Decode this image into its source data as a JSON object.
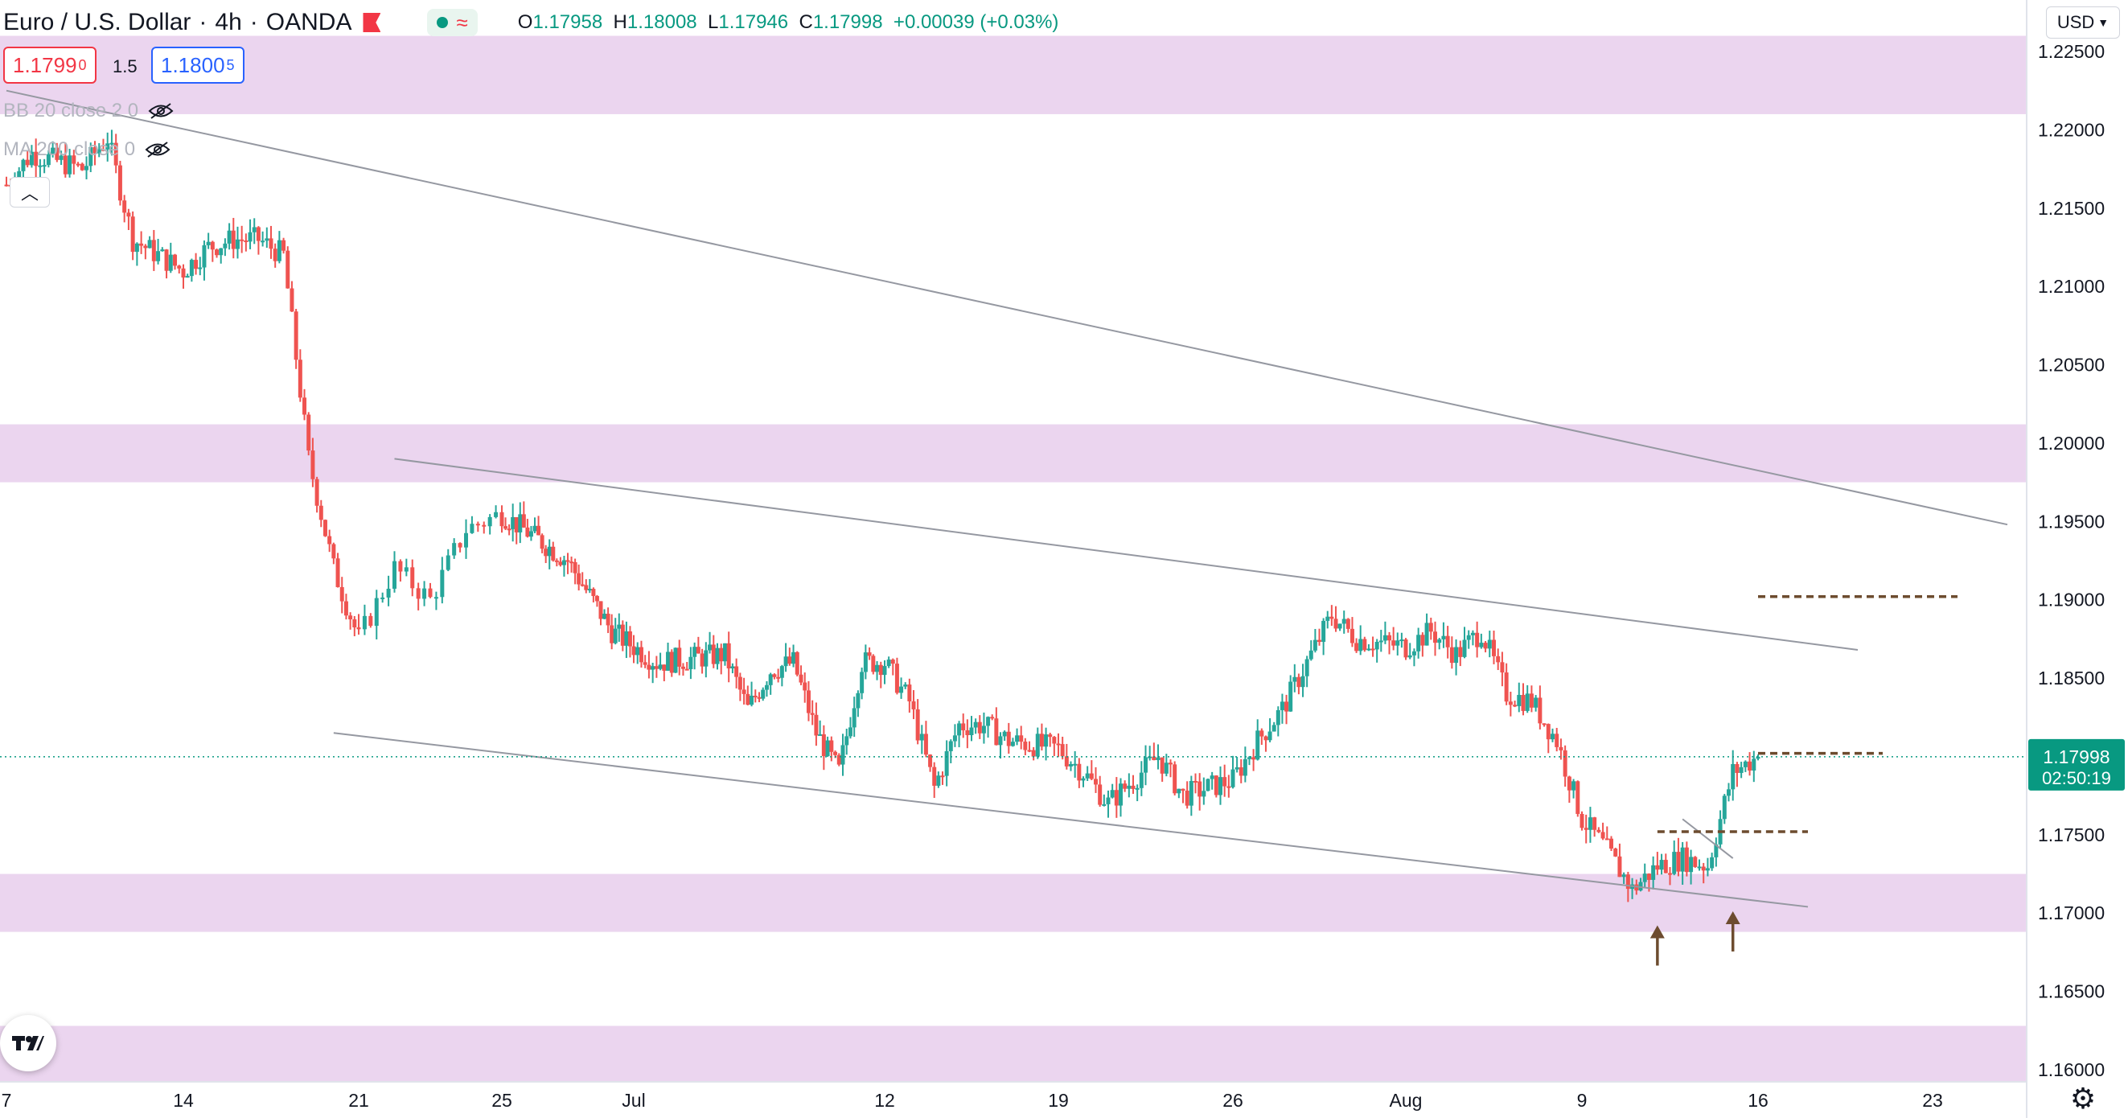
{
  "header": {
    "symbol": "Euro / U.S. Dollar",
    "interval": "4h",
    "source": "OANDA",
    "status_icon": "market-open-dot",
    "approx_symbol": "≈",
    "ohlc": {
      "o_label": "O",
      "o": "1.17958",
      "h_label": "H",
      "h": "1.18008",
      "l_label": "L",
      "l": "1.17946",
      "c_label": "C",
      "c": "1.17998",
      "change": "+0.00039 (+0.03%)"
    }
  },
  "trade": {
    "bid_main": "1.1799",
    "bid_pip": "0",
    "spread": "1.5",
    "ask_main": "1.1800",
    "ask_pip": "5"
  },
  "indicators": [
    "BB 20 close 2 0",
    "MA 200 close 0"
  ],
  "currency_label": "USD",
  "price_label": {
    "price": "1.17998",
    "countdown": "02:50:19"
  },
  "colors": {
    "up": "#26a69a",
    "down": "#ef5350",
    "zone": "#e1bee7",
    "trendline": "#9598a1",
    "level": "#6d4c2f",
    "axis_text": "#131722",
    "price_line": "#089981"
  },
  "chart_data": {
    "type": "candlestick",
    "instrument": "EUR/USD",
    "timeframe": "4h",
    "y_ticks": [
      1.225,
      1.22,
      1.215,
      1.21,
      1.205,
      1.2,
      1.195,
      1.19,
      1.185,
      1.18,
      1.175,
      1.17,
      1.165,
      1.16
    ],
    "y_tick_labels": [
      "1.22500",
      "1.22000",
      "1.21500",
      "1.21000",
      "1.20500",
      "1.20000",
      "1.19500",
      "1.19000",
      "1.18500",
      "1.18000",
      "1.17500",
      "1.17000",
      "1.16500",
      "1.16000"
    ],
    "x_ticks": [
      {
        "label": "7",
        "date": "2021-06-07"
      },
      {
        "label": "14",
        "date": "2021-06-14"
      },
      {
        "label": "21",
        "date": "2021-06-21"
      },
      {
        "label": "25",
        "date": "2021-06-25"
      },
      {
        "label": "Jul",
        "date": "2021-07-01"
      },
      {
        "label": "12",
        "date": "2021-07-12"
      },
      {
        "label": "19",
        "date": "2021-07-19"
      },
      {
        "label": "26",
        "date": "2021-07-26"
      },
      {
        "label": "Aug",
        "date": "2021-08-02"
      },
      {
        "label": "9",
        "date": "2021-08-09"
      },
      {
        "label": "16",
        "date": "2021-08-16"
      },
      {
        "label": "23",
        "date": "2021-08-23"
      }
    ],
    "last_price": 1.17998,
    "keypoints": [
      [
        "2021-06-07",
        1.2165
      ],
      [
        "2021-06-08",
        1.2185
      ],
      [
        "2021-06-10",
        1.2175
      ],
      [
        "2021-06-11",
        1.2195
      ],
      [
        "2021-06-12",
        1.213
      ],
      [
        "2021-06-14",
        1.211
      ],
      [
        "2021-06-15",
        1.2125
      ],
      [
        "2021-06-16",
        1.213
      ],
      [
        "2021-06-17",
        1.213
      ],
      [
        "2021-06-18",
        1.212
      ],
      [
        "2021-06-19",
        1.199
      ],
      [
        "2021-06-20",
        1.192
      ],
      [
        "2021-06-21",
        1.1875
      ],
      [
        "2021-06-22",
        1.192
      ],
      [
        "2021-06-23",
        1.19
      ],
      [
        "2021-06-24",
        1.1945
      ],
      [
        "2021-06-25",
        1.1955
      ],
      [
        "2021-06-27",
        1.1935
      ],
      [
        "2021-06-28",
        1.1925
      ],
      [
        "2021-06-30",
        1.188
      ],
      [
        "2021-07-02",
        1.186
      ],
      [
        "2021-07-05",
        1.1865
      ],
      [
        "2021-07-06",
        1.183
      ],
      [
        "2021-07-07",
        1.1855
      ],
      [
        "2021-07-08",
        1.186
      ],
      [
        "2021-07-09",
        1.1815
      ],
      [
        "2021-07-10",
        1.179
      ],
      [
        "2021-07-11",
        1.186
      ],
      [
        "2021-07-12",
        1.186
      ],
      [
        "2021-07-13",
        1.1835
      ],
      [
        "2021-07-14",
        1.178
      ],
      [
        "2021-07-15",
        1.182
      ],
      [
        "2021-07-16",
        1.182
      ],
      [
        "2021-07-17",
        1.181
      ],
      [
        "2021-07-19",
        1.1805
      ],
      [
        "2021-07-20",
        1.179
      ],
      [
        "2021-07-21",
        1.177
      ],
      [
        "2021-07-22",
        1.1785
      ],
      [
        "2021-07-23",
        1.18
      ],
      [
        "2021-07-24",
        1.1775
      ],
      [
        "2021-07-26",
        1.1785
      ],
      [
        "2021-07-27",
        1.181
      ],
      [
        "2021-07-28",
        1.183
      ],
      [
        "2021-07-29",
        1.186
      ],
      [
        "2021-07-30",
        1.189
      ],
      [
        "2021-07-31",
        1.1875
      ],
      [
        "2021-08-02",
        1.187
      ],
      [
        "2021-08-03",
        1.188
      ],
      [
        "2021-08-04",
        1.1865
      ],
      [
        "2021-08-05",
        1.188
      ],
      [
        "2021-08-06",
        1.184
      ],
      [
        "2021-08-07",
        1.1835
      ],
      [
        "2021-08-08",
        1.181
      ],
      [
        "2021-08-09",
        1.176
      ],
      [
        "2021-08-10",
        1.174
      ],
      [
        "2021-08-11",
        1.1715
      ],
      [
        "2021-08-12",
        1.173
      ],
      [
        "2021-08-13",
        1.1735
      ],
      [
        "2021-08-14",
        1.173
      ],
      [
        "2021-08-15",
        1.179
      ],
      [
        "2021-08-16",
        1.17998
      ]
    ],
    "zones": [
      [
        1.221,
        1.226
      ],
      [
        1.1975,
        1.2012
      ],
      [
        1.1688,
        1.1725
      ],
      [
        1.1592,
        1.1628
      ]
    ],
    "trendlines": [
      [
        [
          "2021-06-07",
          1.2225
        ],
        [
          "2021-08-26",
          1.1948
        ]
      ],
      [
        [
          "2021-06-22",
          1.199
        ],
        [
          "2021-08-20",
          1.1868
        ]
      ],
      [
        [
          "2021-06-20",
          1.1815
        ],
        [
          "2021-08-18",
          1.1704
        ]
      ],
      [
        [
          "2021-08-13",
          1.176
        ],
        [
          "2021-08-15",
          1.1735
        ]
      ]
    ],
    "levels": [
      {
        "price": 1.1902,
        "from": "2021-08-16",
        "to": "2021-08-24"
      },
      {
        "price": 1.1802,
        "from": "2021-08-16",
        "to": "2021-08-21"
      },
      {
        "price": 1.1752,
        "from": "2021-08-12",
        "to": "2021-08-18"
      }
    ],
    "arrows": [
      {
        "date": "2021-08-12",
        "price": 1.1686
      },
      {
        "date": "2021-08-15",
        "price": 1.1695
      }
    ]
  }
}
